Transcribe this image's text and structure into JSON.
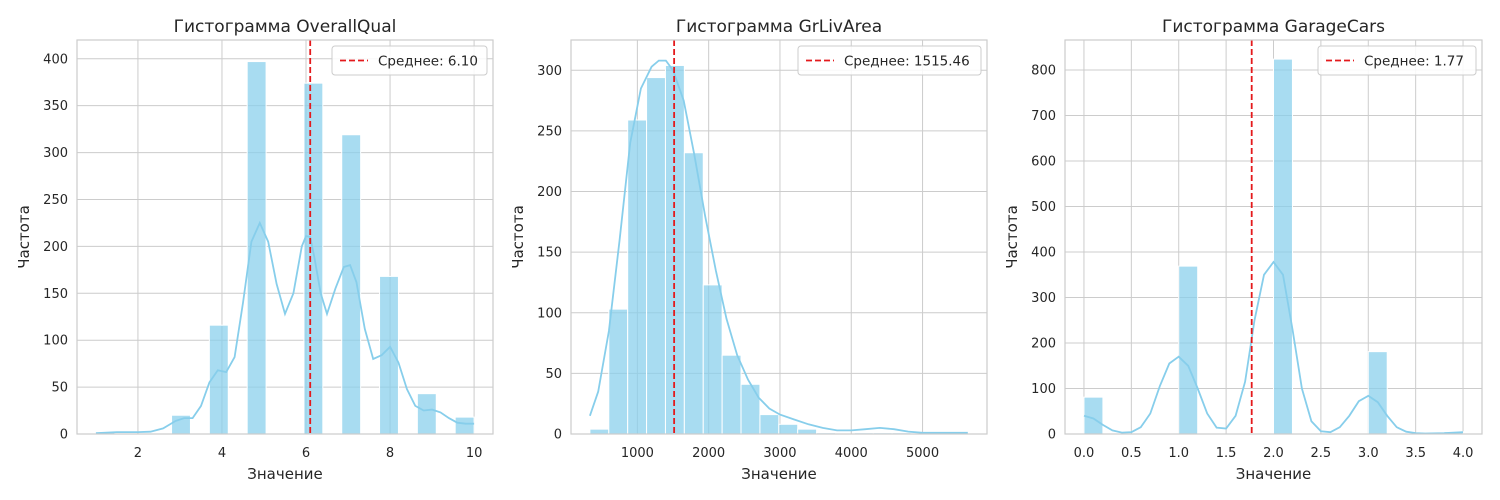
{
  "style": {
    "bar_color": "#87ceeb",
    "kde_color": "#87ceeb",
    "mean_line_color": "#e41a1c",
    "grid_color": "#cccccc",
    "frame_color": "#cccccc"
  },
  "chart_data": [
    {
      "type": "bar",
      "subtype": "histogram",
      "title": "Гистограмма OverallQual",
      "xlabel": "Значение",
      "ylabel": "Частота",
      "xlim": [
        0.55,
        10.45
      ],
      "ylim": [
        0,
        420
      ],
      "xticks": [
        2,
        4,
        6,
        8,
        10
      ],
      "xtick_labels": [
        "2",
        "4",
        "6",
        "8",
        "10"
      ],
      "yticks": [
        0,
        50,
        100,
        150,
        200,
        250,
        300,
        350,
        400
      ],
      "ytick_labels": [
        "0",
        "50",
        "100",
        "150",
        "200",
        "250",
        "300",
        "350",
        "400"
      ],
      "grid": true,
      "legend": {
        "position": "top-right",
        "entries": [
          "Среднее: 6.10"
        ]
      },
      "mean": 6.1,
      "mean_label": "Среднее: 6.10",
      "bins": [
        {
          "x0": 1.0,
          "x1": 1.45,
          "count": 2
        },
        {
          "x0": 2.8,
          "x1": 3.25,
          "count": 20
        },
        {
          "x0": 3.7,
          "x1": 4.15,
          "count": 116
        },
        {
          "x0": 4.6,
          "x1": 5.05,
          "count": 397
        },
        {
          "x0": 5.95,
          "x1": 6.4,
          "count": 374
        },
        {
          "x0": 6.85,
          "x1": 7.3,
          "count": 319
        },
        {
          "x0": 7.75,
          "x1": 8.2,
          "count": 168
        },
        {
          "x0": 8.65,
          "x1": 9.1,
          "count": 43
        },
        {
          "x0": 9.55,
          "x1": 10.0,
          "count": 18
        }
      ],
      "kde": [
        [
          1.0,
          1
        ],
        [
          1.5,
          2
        ],
        [
          2.0,
          2
        ],
        [
          2.3,
          2.5
        ],
        [
          2.6,
          6
        ],
        [
          2.9,
          14
        ],
        [
          3.1,
          17
        ],
        [
          3.3,
          17
        ],
        [
          3.5,
          30
        ],
        [
          3.7,
          55
        ],
        [
          3.9,
          68
        ],
        [
          4.1,
          66
        ],
        [
          4.3,
          82
        ],
        [
          4.5,
          140
        ],
        [
          4.7,
          205
        ],
        [
          4.9,
          225
        ],
        [
          5.1,
          205
        ],
        [
          5.3,
          160
        ],
        [
          5.5,
          128
        ],
        [
          5.7,
          150
        ],
        [
          5.9,
          200
        ],
        [
          6.0,
          211
        ],
        [
          6.1,
          210
        ],
        [
          6.2,
          188
        ],
        [
          6.35,
          150
        ],
        [
          6.5,
          128
        ],
        [
          6.7,
          155
        ],
        [
          6.9,
          178
        ],
        [
          7.05,
          180
        ],
        [
          7.2,
          162
        ],
        [
          7.4,
          112
        ],
        [
          7.6,
          80
        ],
        [
          7.8,
          84
        ],
        [
          8.0,
          93
        ],
        [
          8.2,
          76
        ],
        [
          8.4,
          48
        ],
        [
          8.6,
          30
        ],
        [
          8.8,
          25
        ],
        [
          9.0,
          26
        ],
        [
          9.2,
          23
        ],
        [
          9.4,
          17
        ],
        [
          9.6,
          12
        ],
        [
          9.8,
          11
        ],
        [
          10.0,
          11
        ]
      ]
    },
    {
      "type": "bar",
      "subtype": "histogram",
      "title": "Гистограмма GrLivArea",
      "xlabel": "Значение",
      "ylabel": "Частота",
      "xlim": [
        69,
        5904
      ],
      "ylim": [
        0,
        325
      ],
      "xticks": [
        1000,
        2000,
        3000,
        4000,
        5000
      ],
      "xtick_labels": [
        "1000",
        "2000",
        "3000",
        "4000",
        "5000"
      ],
      "yticks": [
        0,
        50,
        100,
        150,
        200,
        250,
        300
      ],
      "ytick_labels": [
        "0",
        "50",
        "100",
        "150",
        "200",
        "250",
        "300"
      ],
      "grid": true,
      "legend": {
        "position": "top-right",
        "entries": [
          "Среднее: 1515.46"
        ]
      },
      "mean": 1515.46,
      "mean_label": "Среднее: 1515.46",
      "bins": [
        {
          "x0": 334,
          "x1": 599,
          "count": 4
        },
        {
          "x0": 599,
          "x1": 864,
          "count": 103
        },
        {
          "x0": 864,
          "x1": 1129,
          "count": 259
        },
        {
          "x0": 1129,
          "x1": 1394,
          "count": 294
        },
        {
          "x0": 1394,
          "x1": 1659,
          "count": 304
        },
        {
          "x0": 1659,
          "x1": 1924,
          "count": 232
        },
        {
          "x0": 1924,
          "x1": 2189,
          "count": 123
        },
        {
          "x0": 2189,
          "x1": 2454,
          "count": 65
        },
        {
          "x0": 2454,
          "x1": 2719,
          "count": 41
        },
        {
          "x0": 2719,
          "x1": 2984,
          "count": 16
        },
        {
          "x0": 2984,
          "x1": 3249,
          "count": 8
        },
        {
          "x0": 3249,
          "x1": 3514,
          "count": 4
        },
        {
          "x0": 3514,
          "x1": 3779,
          "count": 1
        },
        {
          "x0": 3779,
          "x1": 4044,
          "count": 0
        },
        {
          "x0": 4044,
          "x1": 4309,
          "count": 1
        },
        {
          "x0": 4309,
          "x1": 4574,
          "count": 1
        },
        {
          "x0": 4574,
          "x1": 4839,
          "count": 1
        },
        {
          "x0": 4839,
          "x1": 5104,
          "count": 0
        },
        {
          "x0": 5104,
          "x1": 5369,
          "count": 0
        },
        {
          "x0": 5369,
          "x1": 5634,
          "count": 1
        }
      ],
      "kde": [
        [
          334,
          15
        ],
        [
          450,
          35
        ],
        [
          600,
          85
        ],
        [
          750,
          160
        ],
        [
          900,
          240
        ],
        [
          1050,
          285
        ],
        [
          1200,
          303
        ],
        [
          1300,
          308
        ],
        [
          1400,
          308
        ],
        [
          1500,
          300
        ],
        [
          1650,
          275
        ],
        [
          1800,
          230
        ],
        [
          1950,
          180
        ],
        [
          2100,
          135
        ],
        [
          2250,
          95
        ],
        [
          2400,
          65
        ],
        [
          2550,
          45
        ],
        [
          2700,
          30
        ],
        [
          2850,
          21
        ],
        [
          3000,
          16
        ],
        [
          3200,
          12
        ],
        [
          3400,
          8
        ],
        [
          3600,
          5
        ],
        [
          3800,
          3
        ],
        [
          4000,
          3
        ],
        [
          4200,
          4
        ],
        [
          4400,
          5
        ],
        [
          4600,
          4
        ],
        [
          4800,
          2
        ],
        [
          5000,
          1
        ],
        [
          5200,
          1
        ],
        [
          5400,
          1
        ],
        [
          5634,
          1
        ]
      ]
    },
    {
      "type": "bar",
      "subtype": "histogram",
      "title": "Гистограмма GarageCars",
      "xlabel": "Значение",
      "ylabel": "Частота",
      "xlim": [
        -0.2,
        4.2
      ],
      "ylim": [
        0,
        866
      ],
      "xticks": [
        0.0,
        0.5,
        1.0,
        1.5,
        2.0,
        2.5,
        3.0,
        3.5,
        4.0
      ],
      "xtick_labels": [
        "0.0",
        "0.5",
        "1.0",
        "1.5",
        "2.0",
        "2.5",
        "3.0",
        "3.5",
        "4.0"
      ],
      "yticks": [
        0,
        100,
        200,
        300,
        400,
        500,
        600,
        700,
        800
      ],
      "ytick_labels": [
        "0",
        "100",
        "200",
        "300",
        "400",
        "500",
        "600",
        "700",
        "800"
      ],
      "grid": true,
      "legend": {
        "position": "top-right",
        "entries": [
          "Среднее: 1.77"
        ]
      },
      "mean": 1.77,
      "mean_label": "Среднее: 1.77",
      "bins": [
        {
          "x0": 0.0,
          "x1": 0.2,
          "count": 81
        },
        {
          "x0": 1.0,
          "x1": 1.2,
          "count": 369
        },
        {
          "x0": 2.0,
          "x1": 2.2,
          "count": 824
        },
        {
          "x0": 3.0,
          "x1": 3.2,
          "count": 181
        },
        {
          "x0": 3.8,
          "x1": 4.0,
          "count": 5
        }
      ],
      "kde": [
        [
          0.0,
          40
        ],
        [
          0.1,
          34
        ],
        [
          0.2,
          20
        ],
        [
          0.3,
          8
        ],
        [
          0.4,
          3
        ],
        [
          0.5,
          4
        ],
        [
          0.6,
          15
        ],
        [
          0.7,
          45
        ],
        [
          0.8,
          105
        ],
        [
          0.9,
          155
        ],
        [
          1.0,
          170
        ],
        [
          1.1,
          150
        ],
        [
          1.2,
          100
        ],
        [
          1.3,
          45
        ],
        [
          1.4,
          14
        ],
        [
          1.5,
          12
        ],
        [
          1.6,
          40
        ],
        [
          1.7,
          115
        ],
        [
          1.8,
          250
        ],
        [
          1.9,
          350
        ],
        [
          2.0,
          378
        ],
        [
          2.1,
          350
        ],
        [
          2.2,
          230
        ],
        [
          2.3,
          100
        ],
        [
          2.4,
          28
        ],
        [
          2.5,
          6
        ],
        [
          2.6,
          4
        ],
        [
          2.7,
          15
        ],
        [
          2.8,
          40
        ],
        [
          2.9,
          72
        ],
        [
          3.0,
          84
        ],
        [
          3.1,
          70
        ],
        [
          3.2,
          40
        ],
        [
          3.3,
          15
        ],
        [
          3.4,
          5
        ],
        [
          3.5,
          2
        ],
        [
          3.6,
          1
        ],
        [
          3.8,
          2
        ],
        [
          4.0,
          4
        ]
      ]
    }
  ]
}
